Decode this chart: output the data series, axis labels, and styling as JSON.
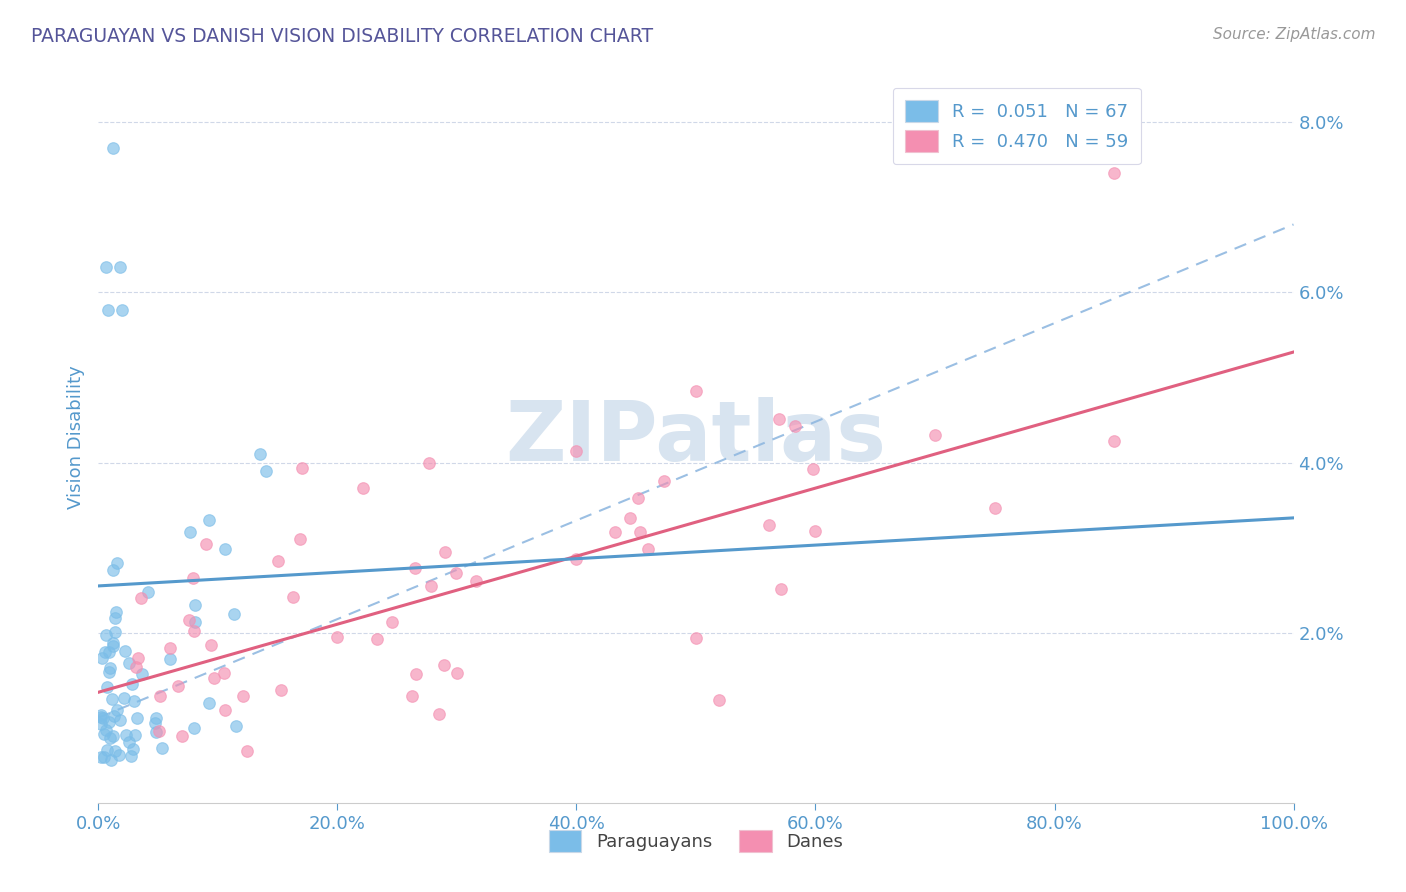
{
  "title": "PARAGUAYAN VS DANISH VISION DISABILITY CORRELATION CHART",
  "source": "Source: ZipAtlas.com",
  "ylabel": "Vision Disability",
  "xlim": [
    0,
    100
  ],
  "ylim": [
    0,
    8.6
  ],
  "ytick_vals": [
    2.0,
    4.0,
    6.0,
    8.0
  ],
  "xtick_vals": [
    0,
    20,
    40,
    60,
    80,
    100
  ],
  "paraguayan_color": "#7bbde8",
  "danish_color": "#f48fb1",
  "R_paraguayan": 0.051,
  "N_paraguayan": 67,
  "R_danish": 0.47,
  "N_danish": 59,
  "trend_paraguayan_color": "#5599cc",
  "trend_danish_color": "#e06080",
  "trend_dashed_color": "#90b8e0",
  "grid_color": "#d0d8e8",
  "title_color": "#555599",
  "axis_label_color": "#5599cc",
  "tick_color": "#5599cc",
  "source_color": "#999999",
  "watermark_color": "#d8e4f0",
  "background_color": "#ffffff",
  "par_trend_slope": 0.008,
  "par_trend_intercept": 2.55,
  "dan_trend_slope": 0.04,
  "dan_trend_intercept": 1.3,
  "dash_trend_slope": 0.058,
  "dash_trend_intercept": 1.0
}
